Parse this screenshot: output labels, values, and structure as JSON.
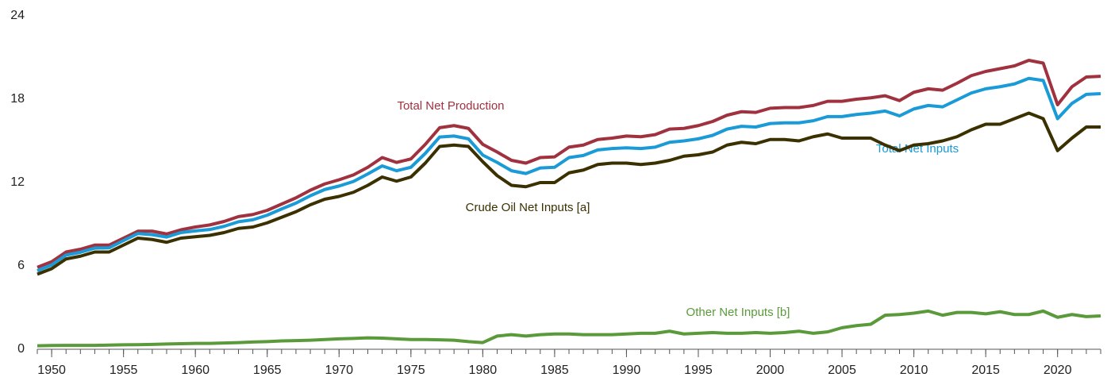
{
  "chart_data": {
    "type": "line",
    "x": [
      1949,
      1950,
      1951,
      1952,
      1953,
      1954,
      1955,
      1956,
      1957,
      1958,
      1959,
      1960,
      1961,
      1962,
      1963,
      1964,
      1965,
      1966,
      1967,
      1968,
      1969,
      1970,
      1971,
      1972,
      1973,
      1974,
      1975,
      1976,
      1977,
      1978,
      1979,
      1980,
      1981,
      1982,
      1983,
      1984,
      1985,
      1986,
      1987,
      1988,
      1989,
      1990,
      1991,
      1992,
      1993,
      1994,
      1995,
      1996,
      1997,
      1998,
      1999,
      2000,
      2001,
      2002,
      2003,
      2004,
      2005,
      2006,
      2007,
      2008,
      2009,
      2010,
      2011,
      2012,
      2013,
      2014,
      2015,
      2016,
      2017,
      2018,
      2019,
      2020,
      2021,
      2022,
      2023
    ],
    "xlim": [
      1949,
      2023
    ],
    "xticks": [
      1950,
      1955,
      1960,
      1965,
      1970,
      1975,
      1980,
      1985,
      1990,
      1995,
      2000,
      2005,
      2010,
      2015,
      2020
    ],
    "ylim": [
      0,
      24
    ],
    "yticks": [
      0,
      6,
      12,
      18,
      24
    ],
    "series": [
      {
        "name": "Total Net Production",
        "color": "#a0323f",
        "values": [
          5.9,
          6.3,
          7.0,
          7.2,
          7.5,
          7.5,
          8.0,
          8.5,
          8.5,
          8.3,
          8.6,
          8.8,
          8.95,
          9.2,
          9.55,
          9.7,
          10.0,
          10.45,
          10.9,
          11.45,
          11.9,
          12.2,
          12.55,
          13.1,
          13.8,
          13.45,
          13.7,
          14.75,
          15.95,
          16.1,
          15.9,
          14.75,
          14.2,
          13.6,
          13.4,
          13.8,
          13.85,
          14.55,
          14.7,
          15.1,
          15.2,
          15.35,
          15.3,
          15.45,
          15.85,
          15.9,
          16.1,
          16.4,
          16.85,
          17.1,
          17.05,
          17.35,
          17.4,
          17.4,
          17.55,
          17.85,
          17.85,
          18.0,
          18.1,
          18.25,
          17.9,
          18.5,
          18.75,
          18.65,
          19.15,
          19.7,
          20.0,
          20.2,
          20.4,
          20.8,
          20.6,
          17.6,
          18.9,
          19.6,
          19.65
        ]
      },
      {
        "name": "Total Net Inputs",
        "color": "#1a9bd7",
        "values": [
          5.65,
          6.07,
          6.78,
          6.98,
          7.28,
          7.3,
          7.82,
          8.33,
          8.25,
          8.08,
          8.4,
          8.52,
          8.62,
          8.85,
          9.18,
          9.32,
          9.65,
          10.1,
          10.52,
          11.05,
          11.5,
          11.75,
          12.08,
          12.62,
          13.2,
          12.85,
          13.1,
          14.1,
          15.28,
          15.35,
          15.15,
          13.98,
          13.45,
          12.85,
          12.65,
          13.05,
          13.1,
          13.8,
          13.95,
          14.35,
          14.45,
          14.5,
          14.45,
          14.55,
          14.9,
          15.0,
          15.15,
          15.4,
          15.85,
          16.05,
          16.0,
          16.25,
          16.3,
          16.3,
          16.45,
          16.75,
          16.75,
          16.9,
          17.0,
          17.15,
          16.8,
          17.3,
          17.55,
          17.45,
          17.95,
          18.45,
          18.75,
          18.9,
          19.1,
          19.5,
          19.35,
          16.6,
          17.7,
          18.35,
          18.4
        ]
      },
      {
        "name": "Crude Oil Net Inputs [a]",
        "color": "#3b3000",
        "values": [
          5.4,
          5.8,
          6.5,
          6.7,
          7.0,
          7.0,
          7.5,
          8.0,
          7.9,
          7.7,
          8.0,
          8.1,
          8.2,
          8.4,
          8.7,
          8.8,
          9.1,
          9.5,
          9.9,
          10.4,
          10.8,
          11.0,
          11.3,
          11.8,
          12.4,
          12.1,
          12.4,
          13.4,
          14.6,
          14.7,
          14.6,
          13.5,
          12.5,
          11.8,
          11.7,
          12.0,
          12.0,
          12.7,
          12.9,
          13.3,
          13.4,
          13.4,
          13.3,
          13.4,
          13.6,
          13.9,
          14.0,
          14.2,
          14.7,
          14.9,
          14.8,
          15.1,
          15.1,
          15.0,
          15.3,
          15.5,
          15.2,
          15.2,
          15.2,
          14.7,
          14.3,
          14.7,
          14.8,
          15.0,
          15.3,
          15.8,
          16.2,
          16.2,
          16.6,
          17.0,
          16.6,
          14.3,
          15.2,
          16.0,
          16.0
        ]
      },
      {
        "name": "Other Net Inputs [b]",
        "color": "#5a9a3a",
        "values": [
          0.25,
          0.27,
          0.28,
          0.28,
          0.28,
          0.3,
          0.32,
          0.33,
          0.35,
          0.38,
          0.4,
          0.42,
          0.42,
          0.45,
          0.48,
          0.52,
          0.55,
          0.6,
          0.62,
          0.65,
          0.7,
          0.75,
          0.78,
          0.82,
          0.8,
          0.75,
          0.7,
          0.7,
          0.68,
          0.65,
          0.55,
          0.48,
          0.95,
          1.05,
          0.95,
          1.05,
          1.1,
          1.1,
          1.05,
          1.05,
          1.05,
          1.1,
          1.15,
          1.15,
          1.3,
          1.1,
          1.15,
          1.2,
          1.15,
          1.15,
          1.2,
          1.15,
          1.2,
          1.3,
          1.15,
          1.25,
          1.55,
          1.7,
          1.8,
          2.45,
          2.5,
          2.6,
          2.75,
          2.45,
          2.65,
          2.65,
          2.55,
          2.7,
          2.5,
          2.5,
          2.75,
          2.3,
          2.5,
          2.35,
          2.4
        ]
      }
    ]
  }
}
